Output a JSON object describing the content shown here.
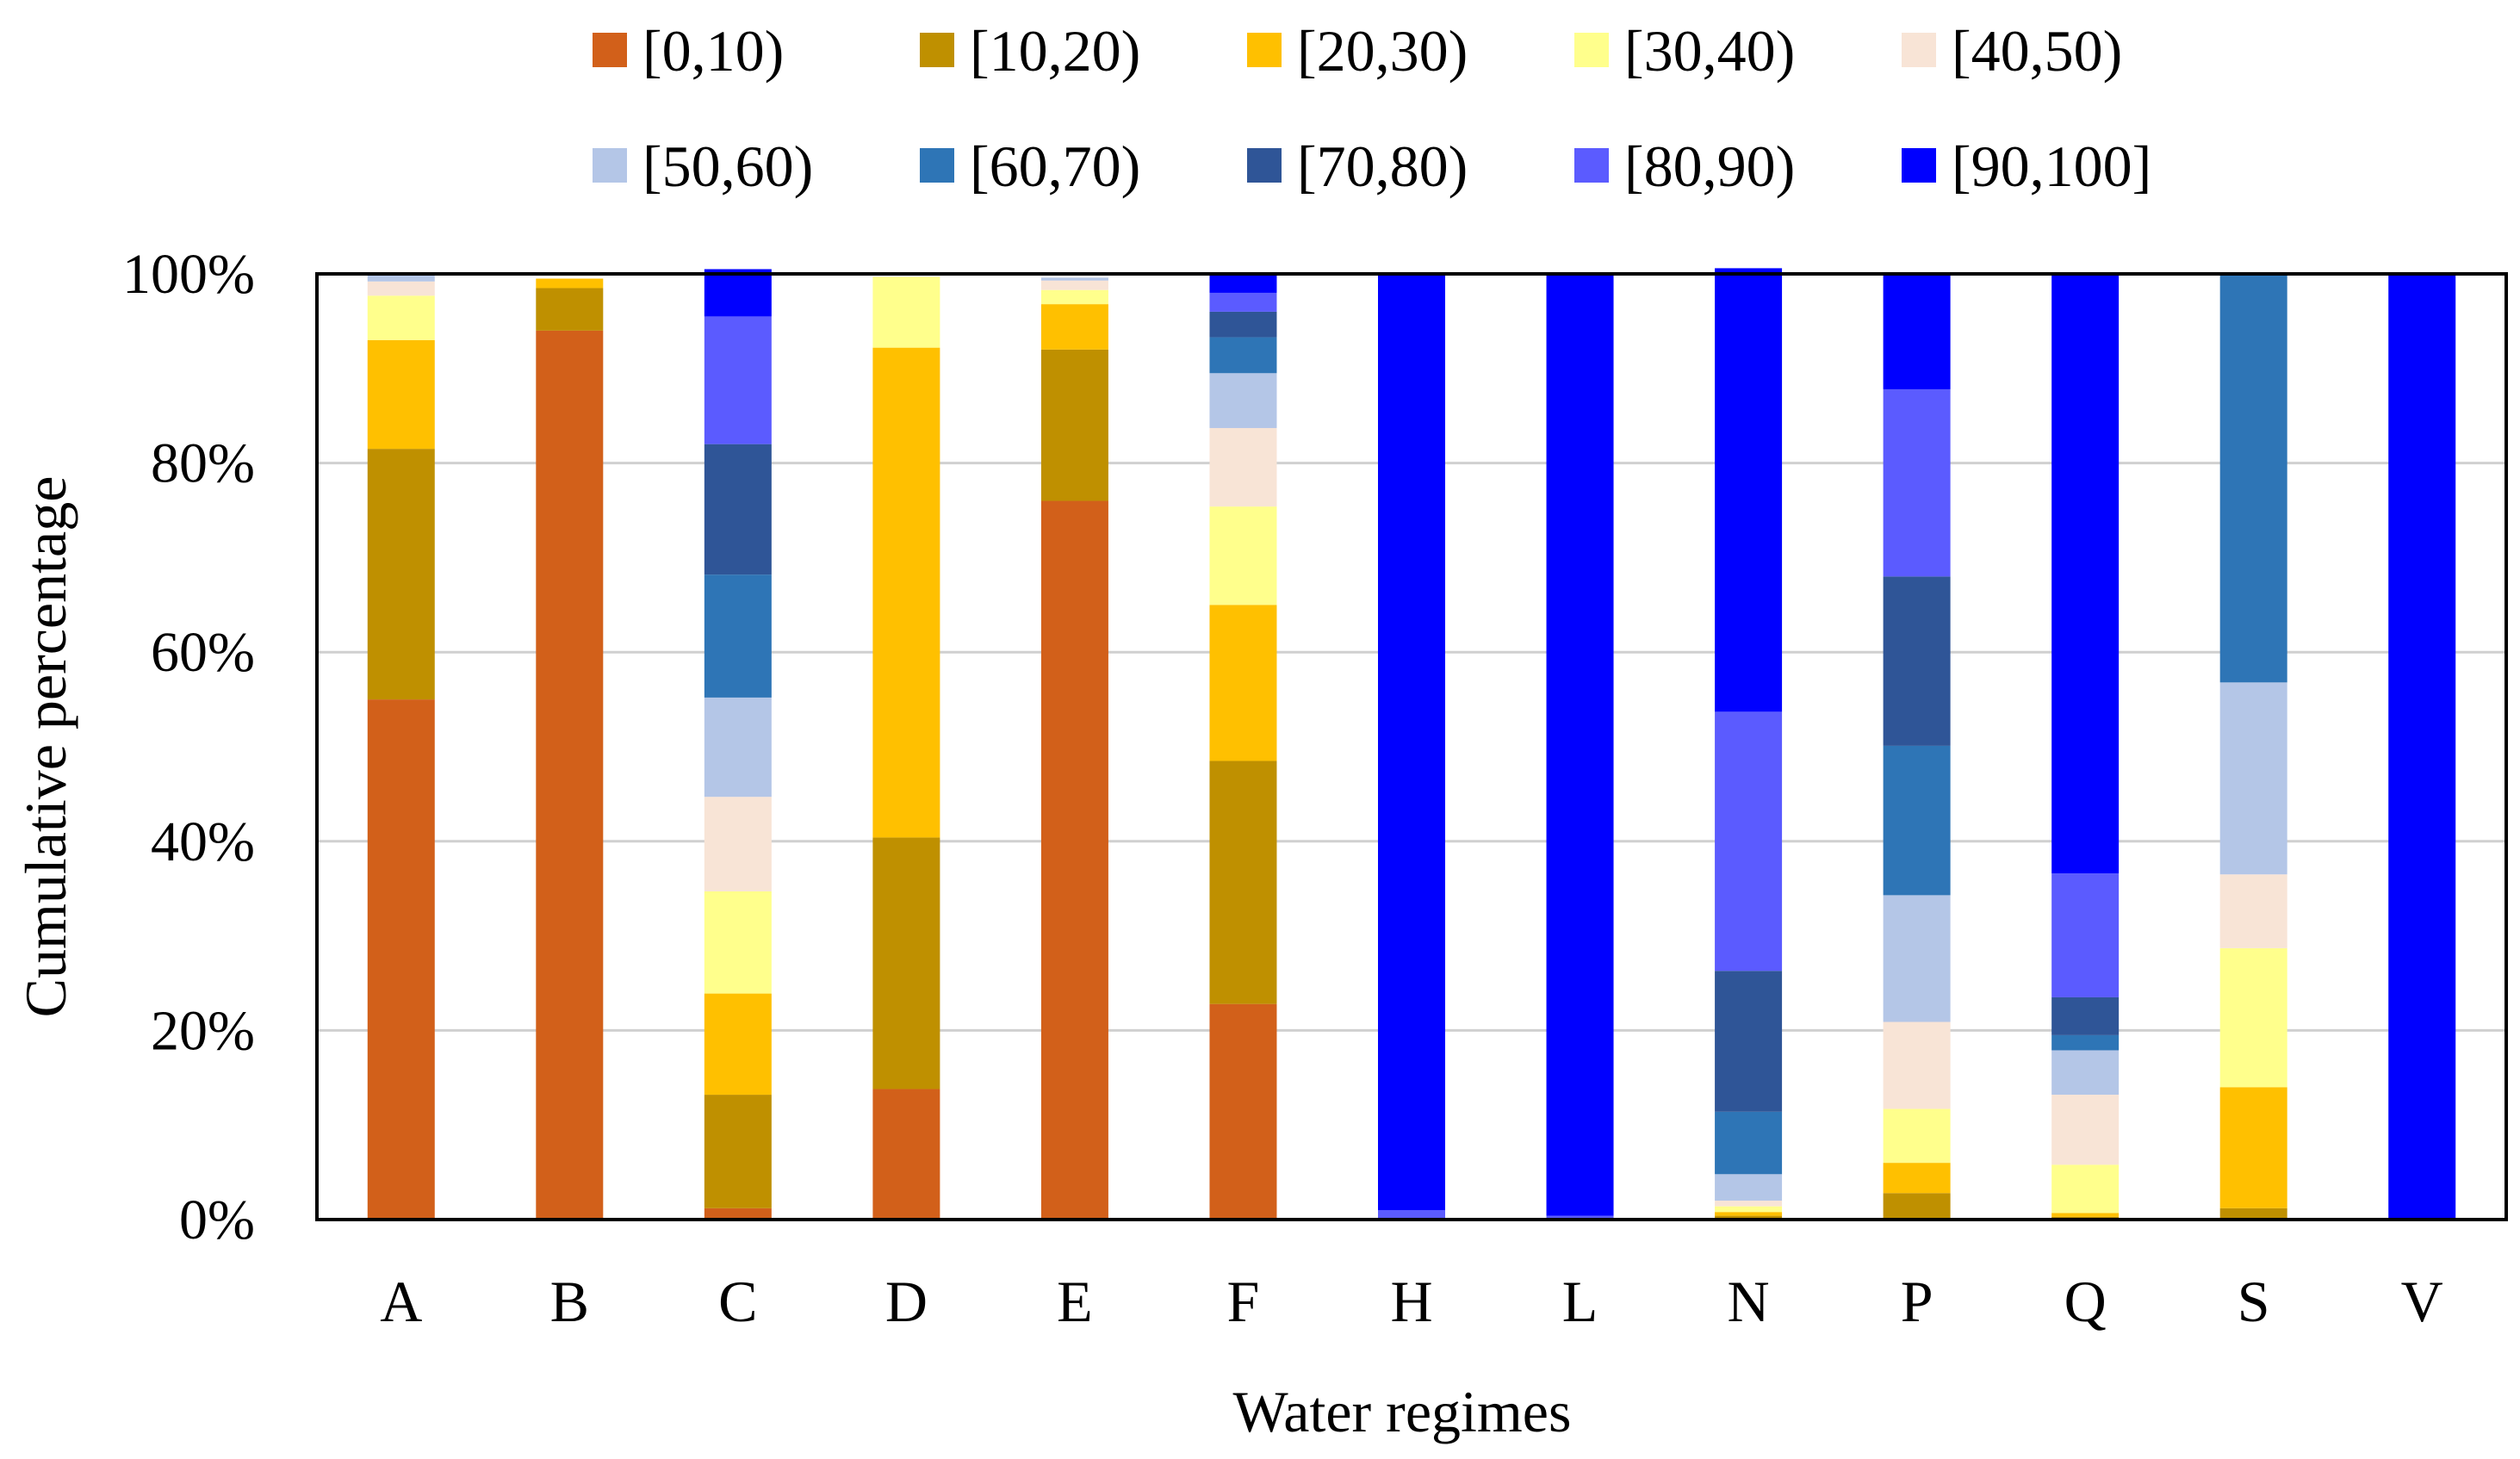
{
  "chart_data": {
    "type": "bar",
    "stacked": true,
    "title": "",
    "xlabel": "Water regimes",
    "ylabel": "Cumulative percentage",
    "ylim": [
      0,
      100
    ],
    "y_ticks": [
      0,
      20,
      40,
      60,
      80,
      100
    ],
    "y_tick_labels": [
      "0%",
      "20%",
      "40%",
      "60%",
      "80%",
      "100%"
    ],
    "grid": true,
    "legend_position": "top",
    "categories": [
      "A",
      "B",
      "C",
      "D",
      "E",
      "F",
      "H",
      "L",
      "N",
      "P",
      "Q",
      "S",
      "V"
    ],
    "series": [
      {
        "name": "[0,10)",
        "color": "#D2601A",
        "values": [
          55.0,
          94.0,
          1.2,
          13.8,
          76.0,
          22.8,
          0,
          0,
          0,
          0,
          0,
          0,
          0
        ]
      },
      {
        "name": "[10,20)",
        "color": "#BF9000",
        "values": [
          26.5,
          4.5,
          12.0,
          26.6,
          16.0,
          25.7,
          0,
          0,
          0.4,
          2.8,
          0.3,
          1.2,
          0
        ]
      },
      {
        "name": "[20,30)",
        "color": "#FFC000",
        "values": [
          11.5,
          1.0,
          10.7,
          51.8,
          4.8,
          16.5,
          0,
          0,
          0.4,
          3.2,
          0.4,
          12.8,
          0
        ]
      },
      {
        "name": "[30,40)",
        "color": "#FFFF8C",
        "values": [
          4.7,
          0,
          10.8,
          7.5,
          1.5,
          10.4,
          0,
          0,
          0.6,
          5.7,
          5.1,
          14.7,
          0
        ]
      },
      {
        "name": "[40,50)",
        "color": "#F8E4D6",
        "values": [
          1.5,
          0,
          10.0,
          0,
          1.0,
          8.3,
          0,
          0,
          0.6,
          9.2,
          7.4,
          7.8,
          0
        ]
      },
      {
        "name": "[50,60)",
        "color": "#B4C6E7",
        "values": [
          0.8,
          0,
          10.5,
          0,
          0.3,
          5.8,
          0,
          0,
          2.8,
          13.4,
          4.7,
          20.3,
          0
        ]
      },
      {
        "name": "[60,70)",
        "color": "#2E75B6",
        "values": [
          0,
          0,
          13.0,
          0,
          0,
          3.8,
          0,
          0,
          6.6,
          15.8,
          1.6,
          43.2,
          0
        ]
      },
      {
        "name": "[70,80)",
        "color": "#2F5597",
        "values": [
          0,
          0,
          13.8,
          0,
          0,
          2.7,
          0,
          0,
          14.9,
          17.9,
          4.0,
          0,
          0
        ]
      },
      {
        "name": "[80,90)",
        "color": "#5B5BFF",
        "values": [
          0,
          0,
          13.5,
          0,
          0,
          2.0,
          1.0,
          0.4,
          27.4,
          19.8,
          13.1,
          0,
          0
        ]
      },
      {
        "name": "[90,100]",
        "color": "#0000FF",
        "values": [
          0,
          0,
          5.0,
          0,
          0,
          2.0,
          99.0,
          99.6,
          46.9,
          12.2,
          63.4,
          0,
          100.0
        ]
      }
    ]
  }
}
